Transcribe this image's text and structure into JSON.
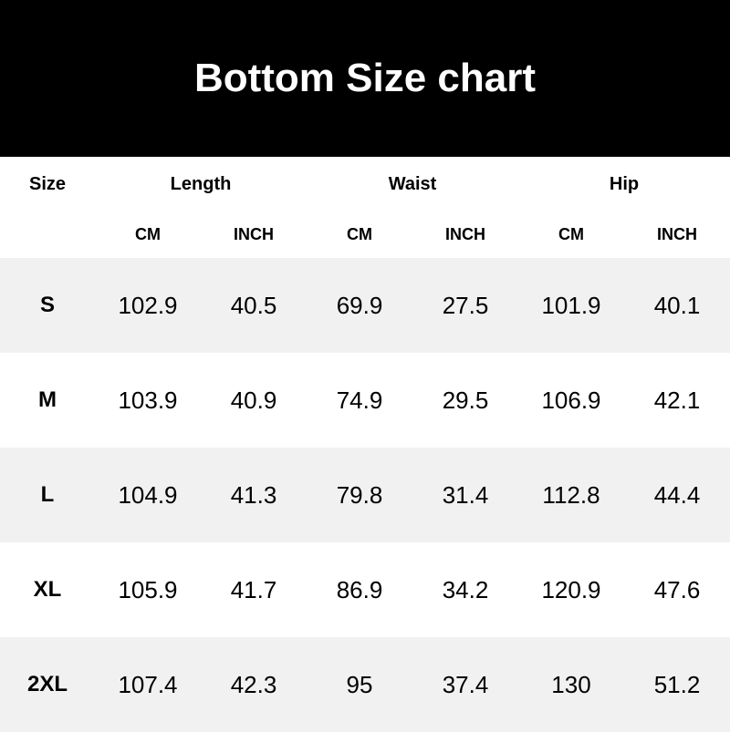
{
  "title": "Bottom Size chart",
  "header": {
    "size": "Size",
    "groups": [
      "Length",
      "Waist",
      "Hip"
    ]
  },
  "subheader": [
    "CM",
    "INCH",
    "CM",
    "INCH",
    "CM",
    "INCH"
  ],
  "colors": {
    "banner": "#000000",
    "stripe": "#f1f1f1"
  },
  "chart_data": {
    "type": "table",
    "title": "Bottom Size chart",
    "columns": [
      "Size",
      "Length CM",
      "Length INCH",
      "Waist CM",
      "Waist INCH",
      "Hip CM",
      "Hip INCH"
    ],
    "rows": [
      [
        "S",
        "102.9",
        "40.5",
        "69.9",
        "27.5",
        "101.9",
        "40.1"
      ],
      [
        "M",
        "103.9",
        "40.9",
        "74.9",
        "29.5",
        "106.9",
        "42.1"
      ],
      [
        "L",
        "104.9",
        "41.3",
        "79.8",
        "31.4",
        "112.8",
        "44.4"
      ],
      [
        "XL",
        "105.9",
        "41.7",
        "86.9",
        "34.2",
        "120.9",
        "47.6"
      ],
      [
        "2XL",
        "107.4",
        "42.3",
        "95",
        "37.4",
        "130",
        "51.2"
      ]
    ]
  }
}
